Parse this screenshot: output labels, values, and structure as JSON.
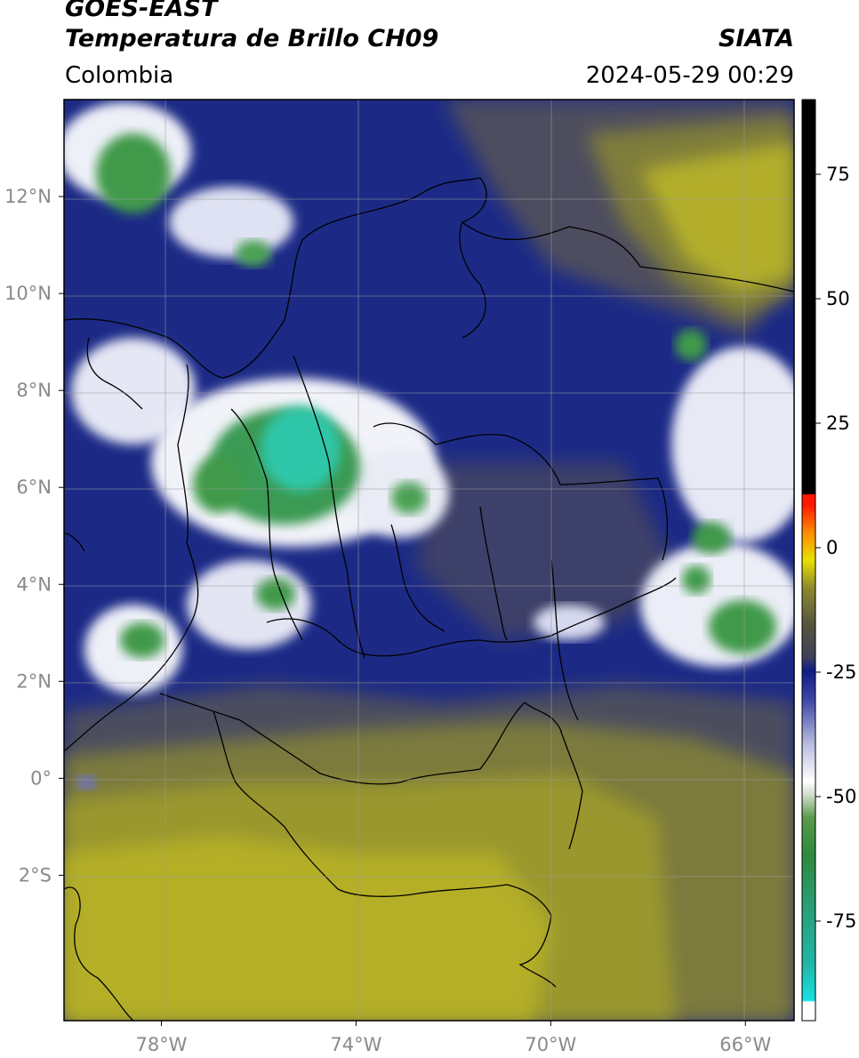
{
  "header": {
    "satellite": "GOES-EAST",
    "product": "Temperatura de Brillo CH09",
    "brand": "SIATA",
    "region": "Colombia",
    "timestamp": "2024-05-29 00:29"
  },
  "map": {
    "lon_range": [
      -80,
      -65
    ],
    "lat_range": [
      -5,
      14
    ],
    "lon_ticks": [
      {
        "value": -78,
        "label": "78°W"
      },
      {
        "value": -74,
        "label": "74°W"
      },
      {
        "value": -70,
        "label": "70°W"
      },
      {
        "value": -66,
        "label": "66°W"
      }
    ],
    "lat_ticks": [
      {
        "value": 12,
        "label": "12°N"
      },
      {
        "value": 10,
        "label": "10°N"
      },
      {
        "value": 8,
        "label": "8°N"
      },
      {
        "value": 6,
        "label": "6°N"
      },
      {
        "value": 4,
        "label": "4°N"
      },
      {
        "value": 2,
        "label": "2°N"
      },
      {
        "value": 0,
        "label": "0°"
      },
      {
        "value": -2,
        "label": "2°S"
      }
    ],
    "grid": true,
    "palette": {
      "dry_yellow": "#b7b228",
      "olive": "#7f7f38",
      "slate": "#4a4d66",
      "navy": "#1c2a86",
      "white": "#f4f4f8",
      "green": "#3f9a4a",
      "teal": "#2ec6a8"
    }
  },
  "colorbar": {
    "range": [
      -95,
      90
    ],
    "labels": [
      "75",
      "50",
      "25",
      "0",
      "-25",
      "-50",
      "-75"
    ],
    "label_values": [
      75,
      50,
      25,
      0,
      -25,
      -50,
      -75
    ]
  }
}
